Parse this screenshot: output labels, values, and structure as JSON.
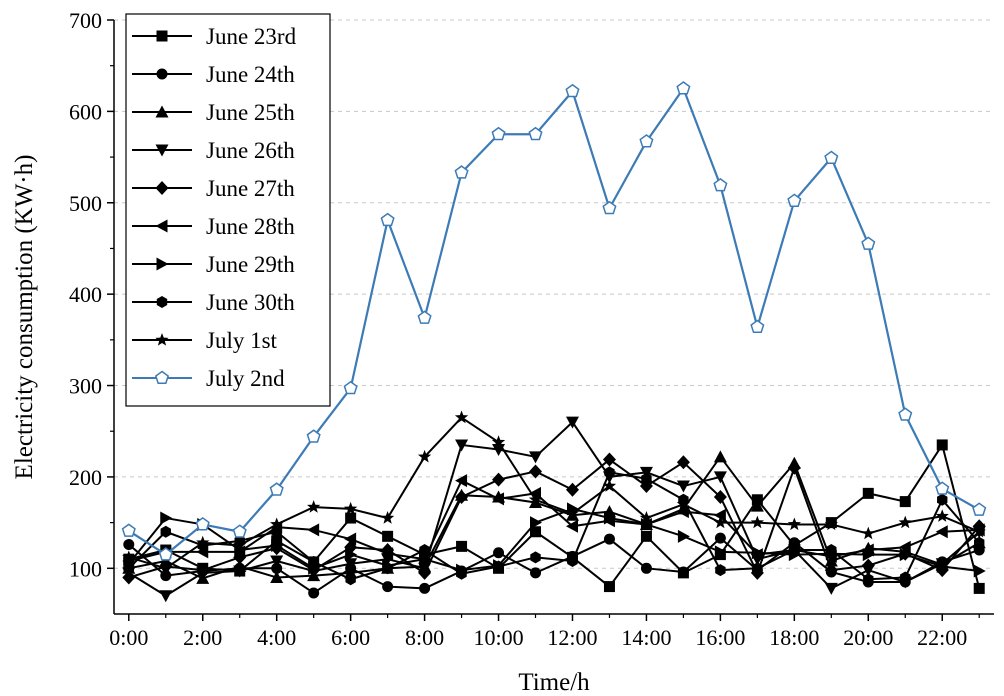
{
  "chart_data": {
    "type": "line",
    "title": "",
    "xlabel": "Time/h",
    "ylabel": "Electricity consumption (KW·h)",
    "x": [
      0,
      1,
      2,
      3,
      4,
      5,
      6,
      7,
      8,
      9,
      10,
      11,
      12,
      13,
      14,
      15,
      16,
      17,
      18,
      19,
      20,
      21,
      22,
      23
    ],
    "xticks": [
      0,
      2,
      4,
      6,
      8,
      10,
      12,
      14,
      16,
      18,
      20,
      22
    ],
    "xtick_labels": [
      "0:00",
      "2:00",
      "4:00",
      "6:00",
      "8:00",
      "10:00",
      "12:00",
      "14:00",
      "16:00",
      "18:00",
      "20:00",
      "22:00"
    ],
    "xlim": [
      -0.4,
      23.4
    ],
    "ylim": [
      50,
      700
    ],
    "yticks": [
      100,
      200,
      300,
      400,
      500,
      600,
      700
    ],
    "ytick_labels": [
      "100",
      "200",
      "300",
      "400",
      "500",
      "600",
      "700"
    ],
    "grid": "horizontal dashed",
    "legend_position": "top-left",
    "series": [
      {
        "name": "June 23rd",
        "marker": "square",
        "color": "#000000",
        "values": [
          110,
          120,
          100,
          97,
          130,
          107,
          155,
          135,
          115,
          124,
          100,
          140,
          112,
          80,
          135,
          95,
          115,
          175,
          125,
          150,
          182,
          173,
          235,
          78
        ]
      },
      {
        "name": "June 24th",
        "marker": "circle",
        "color": "#000000",
        "values": [
          126,
          92,
          97,
          100,
          100,
          73,
          100,
          80,
          78,
          97,
          117,
          95,
          113,
          132,
          100,
          96,
          133,
          98,
          128,
          96,
          85,
          85,
          107,
          120
        ]
      },
      {
        "name": "June 25th",
        "marker": "triangle-up",
        "color": "#000000",
        "values": [
          100,
          108,
          89,
          102,
          90,
          92,
          95,
          100,
          102,
          180,
          178,
          172,
          158,
          162,
          148,
          165,
          222,
          168,
          215,
          108,
          122,
          118,
          104,
          128
        ]
      },
      {
        "name": "June 26th",
        "marker": "triangle-down",
        "color": "#000000",
        "values": [
          95,
          70,
          95,
          97,
          108,
          97,
          105,
          110,
          100,
          235,
          230,
          222,
          260,
          200,
          205,
          190,
          200,
          110,
          120,
          78,
          98,
          85,
          105,
          140
        ]
      },
      {
        "name": "June 27th",
        "marker": "diamond",
        "color": "#000000",
        "values": [
          90,
          102,
          98,
          112,
          122,
          98,
          123,
          120,
          95,
          178,
          197,
          206,
          186,
          219,
          190,
          216,
          178,
          95,
          210,
          98,
          103,
          116,
          98,
          146
        ]
      },
      {
        "name": "June 28th",
        "marker": "triangle-left",
        "color": "#000000",
        "values": [
          108,
          118,
          118,
          118,
          145,
          142,
          132,
          116,
          110,
          196,
          176,
          182,
          146,
          152,
          148,
          162,
          158,
          115,
          120,
          113,
          120,
          123,
          140,
          142
        ]
      },
      {
        "name": "June 29th",
        "marker": "triangle-right",
        "color": "#000000",
        "values": [
          105,
          155,
          148,
          120,
          125,
          100,
          115,
          103,
          110,
          98,
          103,
          150,
          165,
          155,
          148,
          135,
          118,
          117,
          115,
          116,
          115,
          115,
          102,
          97
        ]
      },
      {
        "name": "June 30th",
        "marker": "hexagon",
        "color": "#000000",
        "values": [
          100,
          140,
          125,
          130,
          140,
          107,
          88,
          100,
          120,
          94,
          102,
          112,
          108,
          205,
          198,
          175,
          98,
          100,
          120,
          120,
          88,
          90,
          175,
          128
        ]
      },
      {
        "name": "July 1st",
        "marker": "star",
        "color": "#000000",
        "values": [
          112,
          100,
          128,
          125,
          148,
          167,
          165,
          155,
          222,
          265,
          238,
          175,
          160,
          190,
          155,
          170,
          150,
          150,
          148,
          148,
          138,
          150,
          157,
          140
        ]
      },
      {
        "name": "July 2nd",
        "marker": "pentagon-open",
        "color": "#3c7bb5",
        "values": [
          141,
          115,
          148,
          140,
          186,
          244,
          297,
          481,
          374,
          533,
          575,
          575,
          622,
          494,
          567,
          625,
          519,
          364,
          502,
          549,
          455,
          268,
          187,
          164
        ]
      }
    ]
  }
}
